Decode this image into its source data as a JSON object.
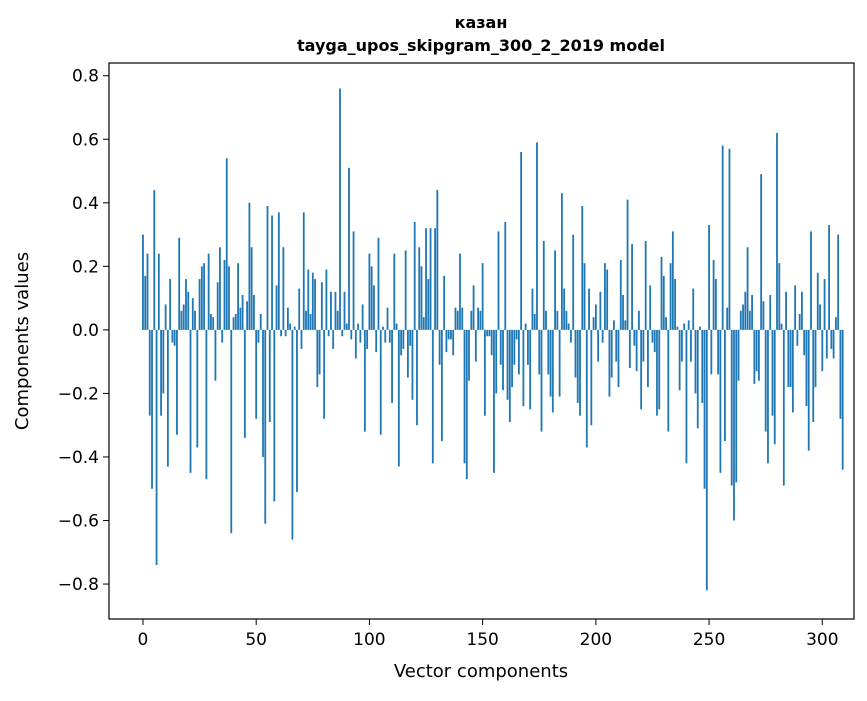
{
  "chart_data": {
    "type": "bar",
    "title_lines": [
      "казан",
      "tayga_upos_skipgram_300_2_2019 model"
    ],
    "xlabel": "Vector components",
    "ylabel": "Components values",
    "xlim": [
      -15,
      314
    ],
    "ylim": [
      -0.91,
      0.84
    ],
    "x_ticks": [
      {
        "value": 0,
        "label": "0"
      },
      {
        "value": 50,
        "label": "50"
      },
      {
        "value": 100,
        "label": "100"
      },
      {
        "value": 150,
        "label": "150"
      },
      {
        "value": 200,
        "label": "200"
      },
      {
        "value": 250,
        "label": "250"
      },
      {
        "value": 300,
        "label": "300"
      }
    ],
    "y_ticks": [
      {
        "value": 0.8,
        "label": "0.8"
      },
      {
        "value": 0.6,
        "label": "0.6"
      },
      {
        "value": 0.4,
        "label": "0.4"
      },
      {
        "value": 0.2,
        "label": "0.2"
      },
      {
        "value": 0.0,
        "label": "0.0"
      },
      {
        "value": -0.2,
        "label": "−0.2"
      },
      {
        "value": -0.4,
        "label": "−0.4"
      },
      {
        "value": -0.6,
        "label": "−0.6"
      },
      {
        "value": -0.8,
        "label": "−0.8"
      }
    ],
    "grid": false,
    "legend": "none",
    "bar_color": "#1f77b4",
    "values": [
      0.3,
      0.17,
      0.24,
      -0.27,
      -0.5,
      0.44,
      -0.74,
      0.24,
      -0.27,
      -0.2,
      0.08,
      -0.43,
      0.16,
      -0.04,
      -0.05,
      -0.33,
      0.29,
      0.06,
      0.08,
      0.16,
      0.12,
      -0.45,
      0.1,
      0.06,
      -0.37,
      0.16,
      0.2,
      0.21,
      -0.47,
      0.24,
      0.05,
      0.04,
      -0.16,
      0.15,
      0.26,
      -0.04,
      0.22,
      0.54,
      0.2,
      -0.64,
      0.04,
      0.05,
      0.21,
      0.07,
      0.11,
      -0.34,
      0.09,
      0.4,
      0.26,
      0.11,
      -0.28,
      -0.04,
      0.05,
      -0.4,
      -0.61,
      0.39,
      -0.29,
      0.36,
      -0.54,
      0.14,
      0.37,
      -0.02,
      0.26,
      -0.02,
      0.07,
      0.02,
      -0.66,
      0.01,
      -0.51,
      0.13,
      -0.06,
      0.37,
      0.06,
      0.19,
      0.05,
      0.18,
      0.16,
      -0.18,
      -0.14,
      0.15,
      -0.28,
      0.19,
      -0.02,
      0.12,
      -0.06,
      0.12,
      0.06,
      0.76,
      -0.02,
      0.12,
      0.02,
      0.51,
      -0.03,
      0.31,
      -0.09,
      0.02,
      -0.04,
      0.08,
      -0.32,
      -0.06,
      0.24,
      0.2,
      0.14,
      -0.07,
      0.29,
      -0.33,
      0.01,
      -0.04,
      0.07,
      -0.04,
      -0.23,
      0.24,
      0.02,
      -0.43,
      -0.08,
      -0.06,
      0.25,
      -0.15,
      -0.05,
      -0.22,
      0.34,
      -0.3,
      0.26,
      0.2,
      0.04,
      0.32,
      0.16,
      0.32,
      -0.42,
      0.32,
      0.44,
      -0.11,
      -0.35,
      0.17,
      -0.07,
      -0.03,
      -0.03,
      -0.08,
      0.07,
      0.06,
      0.24,
      0.07,
      -0.42,
      -0.47,
      -0.16,
      0.06,
      0.14,
      -0.1,
      0.07,
      0.06,
      0.21,
      -0.27,
      -0.02,
      -0.02,
      -0.08,
      -0.45,
      -0.2,
      0.31,
      -0.11,
      -0.19,
      0.34,
      -0.22,
      -0.29,
      -0.18,
      -0.11,
      -0.03,
      -0.14,
      0.56,
      -0.24,
      0.02,
      -0.11,
      -0.25,
      0.13,
      0.05,
      0.59,
      -0.14,
      -0.32,
      0.28,
      0.06,
      -0.14,
      -0.21,
      -0.26,
      0.25,
      0.06,
      -0.21,
      0.43,
      0.13,
      0.06,
      0.02,
      -0.04,
      0.3,
      -0.15,
      -0.23,
      -0.27,
      0.39,
      0.21,
      -0.37,
      0.13,
      -0.3,
      0.04,
      0.08,
      -0.1,
      0.12,
      -0.04,
      0.21,
      0.19,
      -0.21,
      -0.15,
      0.03,
      -0.1,
      -0.18,
      0.22,
      0.11,
      0.03,
      0.41,
      -0.12,
      0.27,
      -0.05,
      -0.13,
      0.06,
      -0.25,
      -0.1,
      0.28,
      -0.18,
      0.14,
      -0.04,
      -0.07,
      -0.27,
      -0.25,
      0.23,
      0.17,
      0.04,
      -0.32,
      0.21,
      0.31,
      0.16,
      0.01,
      -0.19,
      -0.1,
      0.02,
      -0.42,
      0.03,
      -0.1,
      0.13,
      -0.2,
      -0.31,
      0.01,
      -0.23,
      -0.5,
      -0.82,
      0.33,
      -0.14,
      0.22,
      0.16,
      -0.14,
      -0.45,
      0.58,
      -0.35,
      0.07,
      0.57,
      -0.49,
      -0.6,
      -0.48,
      -0.16,
      0.06,
      0.08,
      0.12,
      0.26,
      0.06,
      0.11,
      -0.17,
      -0.13,
      -0.16,
      0.49,
      0.09,
      -0.32,
      -0.42,
      0.11,
      -0.27,
      -0.36,
      0.62,
      0.21,
      0.02,
      -0.49,
      0.12,
      -0.18,
      -0.18,
      -0.26,
      0.14,
      -0.05,
      0.05,
      0.12,
      -0.08,
      -0.24,
      -0.38,
      0.31,
      -0.29,
      -0.18,
      0.18,
      0.08,
      -0.13,
      0.16,
      -0.09,
      0.33,
      -0.06,
      -0.09,
      0.04,
      0.3,
      -0.28,
      -0.44
    ]
  }
}
